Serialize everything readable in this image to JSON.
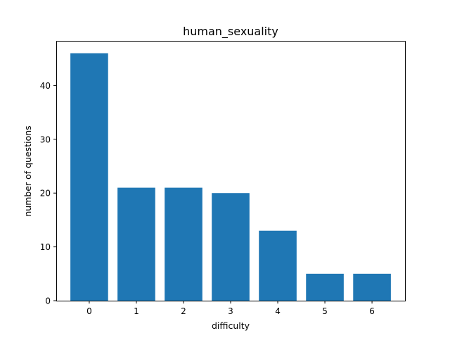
{
  "chart_data": {
    "type": "bar",
    "title": "human_sexuality",
    "xlabel": "difficulty",
    "ylabel": "number of questions",
    "categories": [
      "0",
      "1",
      "2",
      "3",
      "4",
      "5",
      "6"
    ],
    "values": [
      46,
      21,
      21,
      20,
      13,
      5,
      5
    ],
    "x_ticks": [
      "0",
      "1",
      "2",
      "3",
      "4",
      "5",
      "6"
    ],
    "y_ticks": [
      0,
      10,
      20,
      30,
      40
    ],
    "y_tick_labels": [
      "0",
      "10",
      "20",
      "30",
      "40"
    ],
    "ylim": [
      0,
      48.3
    ],
    "grid": false,
    "legend": "none",
    "bar_color": "#1f77b4"
  }
}
